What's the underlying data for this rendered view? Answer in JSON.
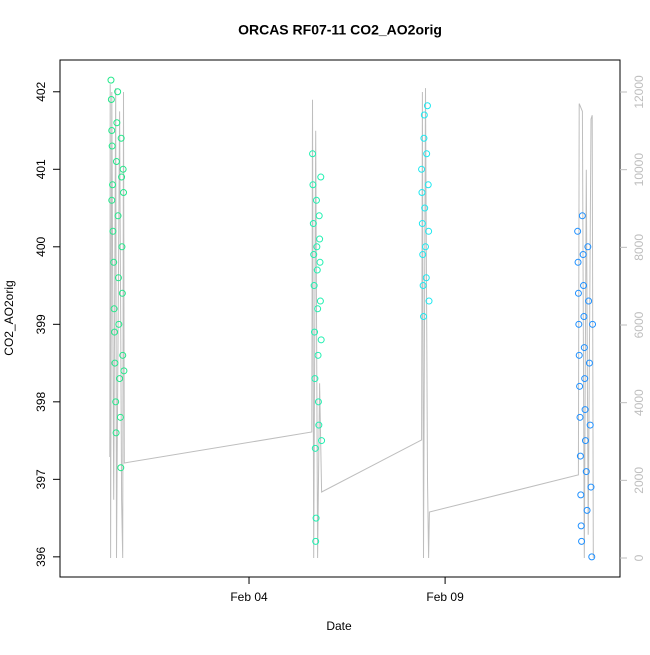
{
  "chart_data": {
    "type": "scatter",
    "title": "ORCAS RF07-11 CO2_AO2orig",
    "xlabel": "Date",
    "ylabel": "CO2_AO2orig",
    "xlim": [
      -0.82,
      13.46
    ],
    "xticks": [
      {
        "value": 4,
        "label": "Feb 04"
      },
      {
        "value": 9,
        "label": "Feb 09"
      }
    ],
    "ylim": [
      395.74,
      402.41
    ],
    "yticks": [
      396,
      397,
      398,
      399,
      400,
      401,
      402
    ],
    "y2lim": [
      -489,
      12824
    ],
    "y2ticks": [
      0,
      2000,
      4000,
      6000,
      8000,
      10000,
      12000
    ],
    "y2color": "#bebebe",
    "series": [
      {
        "color": "#22e88a",
        "x": [
          0.48,
          0.49,
          0.5,
          0.51,
          0.52,
          0.5,
          0.53,
          0.55,
          0.56,
          0.57,
          0.58,
          0.6,
          0.61,
          0.62,
          0.63,
          0.65,
          0.66,
          0.67,
          0.68,
          0.7,
          0.72,
          0.73,
          0.74,
          0.75,
          0.76,
          0.77,
          0.78,
          0.79,
          0.8,
          0.81
        ],
        "values": [
          402.15,
          401.9,
          401.5,
          401.3,
          400.8,
          400.6,
          400.2,
          399.8,
          399.2,
          398.9,
          398.5,
          398.0,
          397.6,
          401.1,
          401.6,
          402.0,
          400.4,
          399.6,
          399.0,
          398.3,
          397.8,
          397.15,
          401.4,
          400.9,
          400.0,
          399.4,
          398.6,
          401.0,
          400.7,
          398.4
        ]
      },
      {
        "color": "#1ff0b0",
        "x": [
          5.62,
          5.63,
          5.64,
          5.65,
          5.66,
          5.67,
          5.68,
          5.69,
          5.7,
          5.71,
          5.72,
          5.73,
          5.74,
          5.75,
          5.76,
          5.77,
          5.78,
          5.79,
          5.8,
          5.81,
          5.82,
          5.83,
          5.84,
          5.85
        ],
        "values": [
          401.2,
          400.8,
          400.3,
          399.9,
          399.5,
          398.9,
          398.3,
          397.4,
          396.2,
          396.5,
          400.6,
          400.0,
          399.7,
          399.2,
          398.6,
          398.0,
          397.7,
          400.4,
          400.1,
          399.8,
          399.3,
          400.9,
          398.8,
          397.5
        ]
      },
      {
        "color": "#1ee8f0",
        "x": [
          8.4,
          8.41,
          8.42,
          8.43,
          8.44,
          8.45,
          8.46,
          8.47,
          8.48,
          8.5,
          8.52,
          8.53,
          8.55,
          8.57,
          8.58,
          8.59
        ],
        "values": [
          401.0,
          400.7,
          400.3,
          399.9,
          399.5,
          399.1,
          401.4,
          401.7,
          400.5,
          400.0,
          399.6,
          401.2,
          401.82,
          400.8,
          400.2,
          399.3
        ]
      },
      {
        "color": "#1e90ff",
        "x": [
          12.38,
          12.39,
          12.4,
          12.41,
          12.42,
          12.43,
          12.44,
          12.45,
          12.46,
          12.47,
          12.48,
          12.5,
          12.52,
          12.53,
          12.54,
          12.55,
          12.56,
          12.57,
          12.58,
          12.6,
          12.62,
          12.64,
          12.66,
          12.68,
          12.7,
          12.72,
          12.74,
          12.76
        ],
        "values": [
          400.2,
          399.8,
          399.4,
          399.0,
          398.6,
          398.2,
          397.8,
          397.3,
          396.8,
          396.4,
          396.2,
          400.4,
          399.9,
          399.5,
          399.1,
          398.7,
          398.3,
          397.9,
          397.5,
          397.1,
          396.6,
          400.0,
          399.3,
          398.5,
          397.7,
          396.9,
          396.0,
          399.0
        ]
      },
      {
        "type": "line",
        "axis": "y2",
        "color": "#bebebe",
        "x": [
          0.45,
          0.46,
          0.47,
          0.5,
          0.55,
          0.6,
          0.62,
          0.7,
          0.75,
          0.78,
          0.8,
          0.82,
          5.6,
          5.62,
          5.65,
          5.7,
          5.75,
          5.8,
          5.85,
          8.4,
          8.42,
          8.45,
          8.5,
          8.55,
          8.58,
          8.6,
          12.4,
          12.42,
          12.5,
          12.55,
          12.6,
          12.65,
          12.72,
          12.75,
          12.78
        ],
        "values": [
          2600,
          12200,
          0,
          12000,
          1500,
          12100,
          0,
          11500,
          1500,
          0,
          12000,
          2447,
          3245,
          11800,
          0,
          11000,
          0,
          4500,
          1700,
          3040,
          12000,
          0,
          12100,
          2000,
          0,
          1185,
          2140,
          11700,
          11500,
          0,
          10000,
          600,
          11300,
          11400,
          0
        ]
      }
    ]
  }
}
